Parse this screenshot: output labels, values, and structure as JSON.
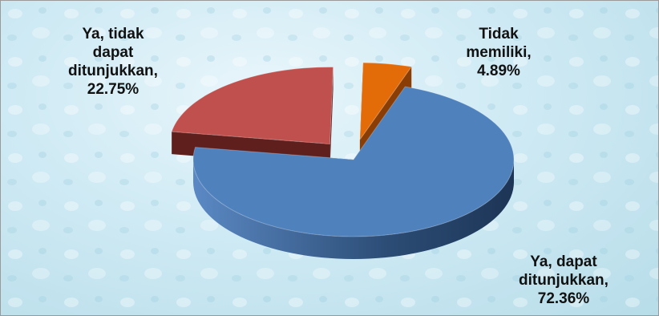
{
  "chart_data": {
    "type": "pie",
    "subtype": "3d-exploded",
    "slices": [
      {
        "label": "Ya, dapat ditunjukkan",
        "value": 72.36,
        "value_text": "72.36%",
        "color": "#4f81bd",
        "side_color": "#2c4d76"
      },
      {
        "label": "Ya, tidak dapat ditunjukkan",
        "value": 22.75,
        "value_text": "22.75%",
        "color": "#c0504d",
        "side_color": "#5e1f1d"
      },
      {
        "label": "Tidak memiliki",
        "value": 4.89,
        "value_text": "4.89%",
        "color": "#e36c09",
        "side_color": "#8a3e05"
      }
    ],
    "labels": {
      "blue": [
        "Ya, dapat",
        "ditunjukkan,",
        "72.36%"
      ],
      "red": [
        "Ya, tidak",
        "dapat",
        "ditunjukkan,",
        "22.75%"
      ],
      "orange": [
        "Tidak",
        "memiliki,",
        "4.89%"
      ]
    },
    "legend": "none",
    "background": "water-drops"
  }
}
